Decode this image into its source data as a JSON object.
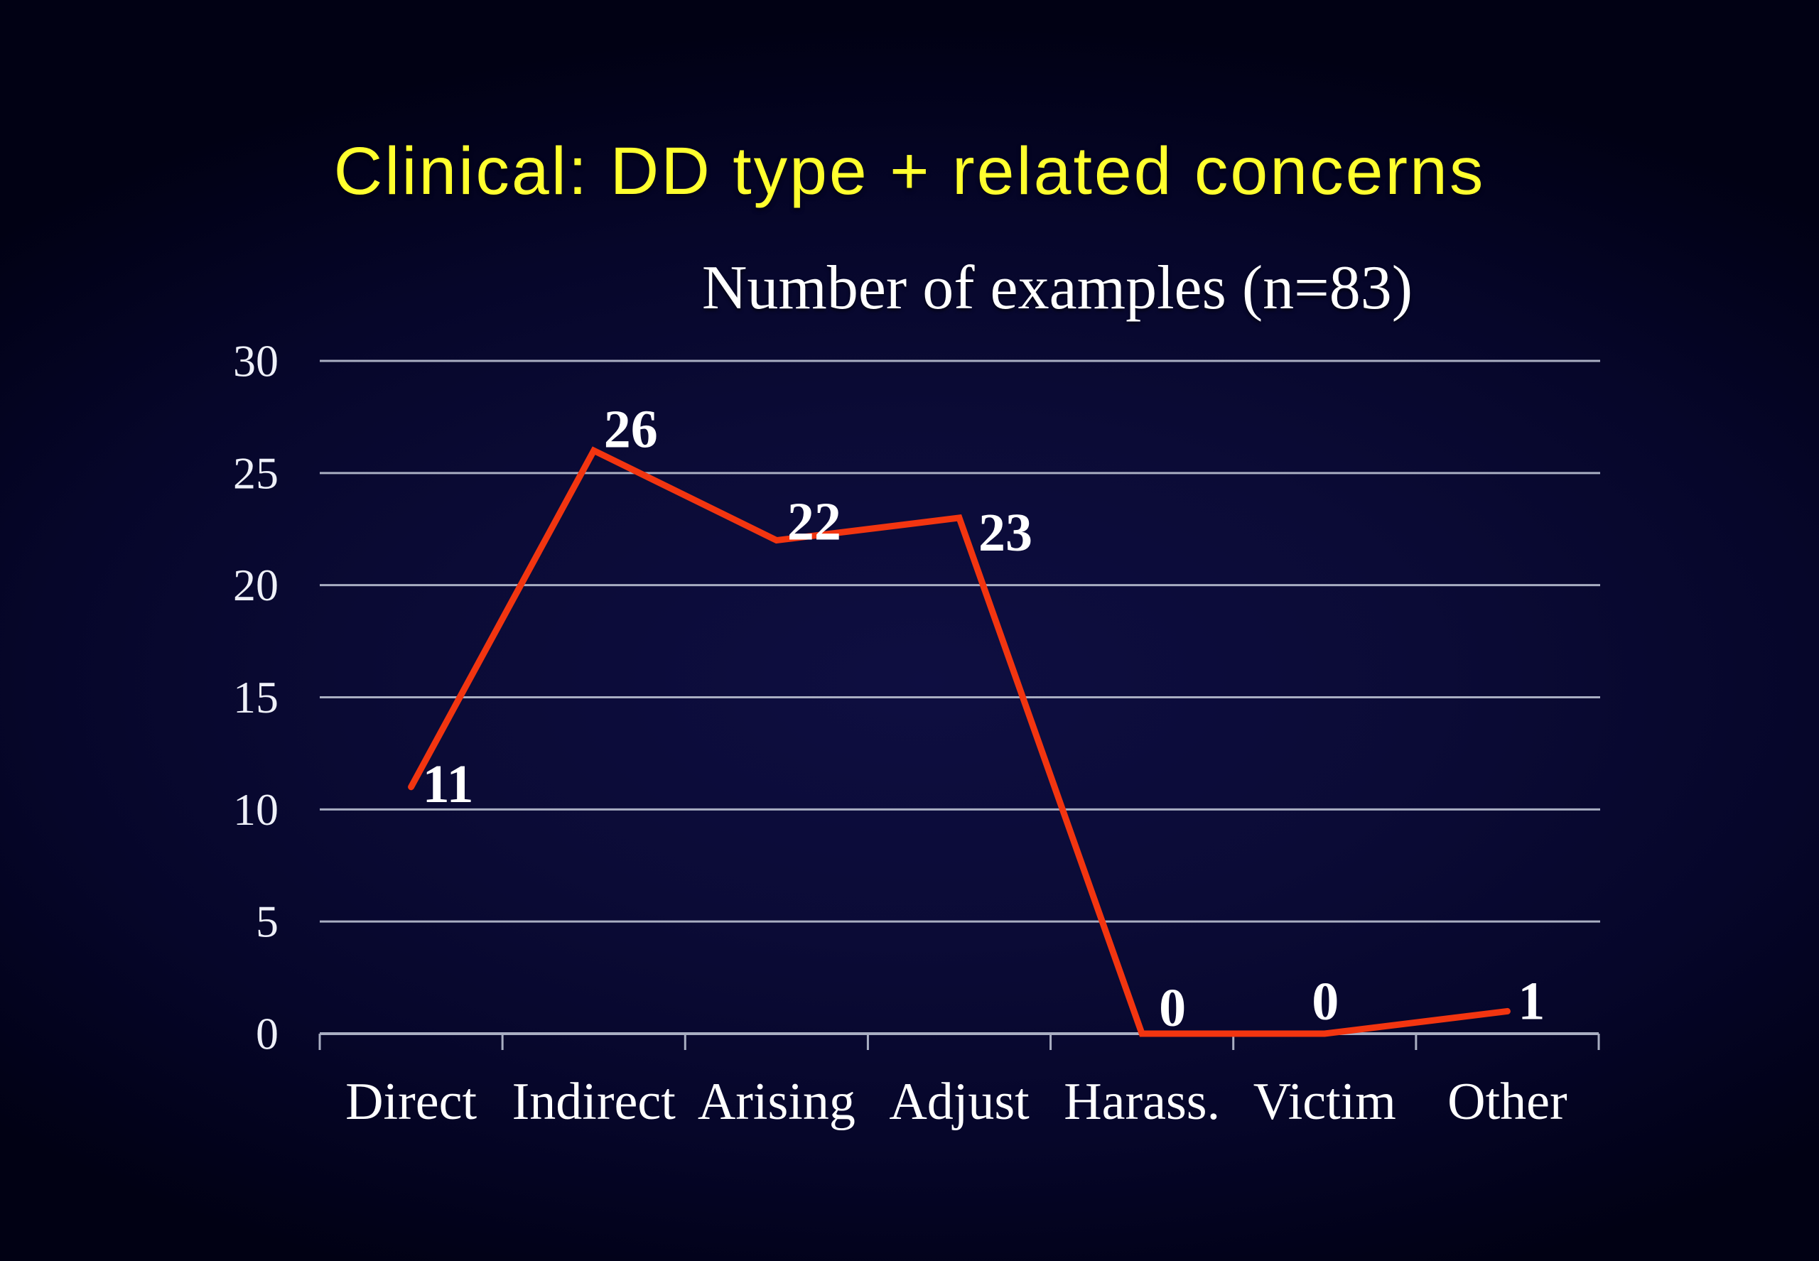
{
  "slide": {
    "title": "Clinical: DD type + related concerns",
    "title_color": "#ffff2e",
    "background_center_color": "#0e0e41",
    "background_edge_color": "#010114"
  },
  "chart_data": {
    "type": "line",
    "title": "Number of examples (n=83)",
    "categories": [
      "Direct",
      "Indirect",
      "Arising",
      "Adjust",
      "Harass.",
      "Victim",
      "Other"
    ],
    "values": [
      11,
      26,
      22,
      23,
      0,
      0,
      1
    ],
    "data_labels": [
      "11",
      "26",
      "22",
      "23",
      "0",
      "0",
      "1"
    ],
    "y_ticks": [
      0,
      5,
      10,
      15,
      20,
      25,
      30
    ],
    "ylim": [
      0,
      30
    ],
    "grid": true,
    "legend": "none",
    "line_color": "#f23510",
    "grid_color": "#a9aec2",
    "axis_color": "#a9aec2",
    "text_color": "#ffffff",
    "tick_label_color": "#eef0f8"
  }
}
